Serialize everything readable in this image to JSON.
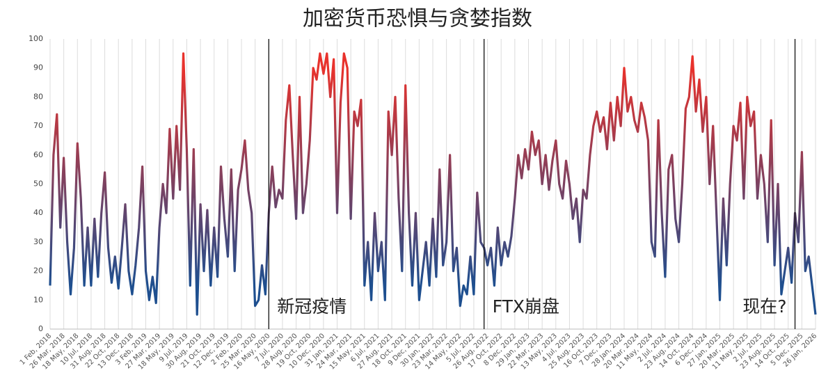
{
  "chart_data": {
    "type": "line",
    "title": "加密货币恐惧与贪婪指数",
    "categories": [
      "1 Feb, 2018",
      null,
      null,
      null,
      "26 Mar, 2018",
      null,
      null,
      null,
      "18 May, 2018",
      null,
      null,
      null,
      "10 Jul, 2018",
      null,
      null,
      null,
      "31 Aug, 2018",
      null,
      null,
      null,
      "22 Oct, 2018",
      null,
      null,
      null,
      "13 Dec, 2018",
      null,
      null,
      null,
      "3 Feb, 2019",
      null,
      null,
      null,
      "27 Mar, 2019",
      null,
      null,
      null,
      "18 May, 2019",
      null,
      null,
      null,
      "9 Jul, 2019",
      null,
      null,
      null,
      "30 Aug, 2019",
      null,
      null,
      null,
      "21 Oct, 2019",
      null,
      null,
      null,
      "12 Dec, 2019",
      null,
      null,
      null,
      "2 Feb, 2020",
      null,
      null,
      null,
      "25 Mar, 2020",
      null,
      null,
      null,
      "16 May, 2020",
      null,
      null,
      null,
      "7 Jul, 2020",
      null,
      null,
      null,
      "28 Aug, 2020",
      null,
      null,
      null,
      "19 Oct, 2020",
      null,
      null,
      null,
      "10 Dec, 2020",
      null,
      null,
      null,
      "31 Jan, 2021",
      null,
      null,
      null,
      "24 Mar, 2021",
      null,
      null,
      null,
      "15 May, 2021",
      null,
      null,
      null,
      "6 Jul, 2021",
      null,
      null,
      null,
      "27 Aug, 2021",
      null,
      null,
      null,
      "18 Oct, 2021",
      null,
      null,
      null,
      "9 Dec, 2021",
      null,
      null,
      null,
      "30 Jan, 2022",
      null,
      null,
      null,
      "23 Mar, 2022",
      null,
      null,
      null,
      "14 May, 2022",
      null,
      null,
      null,
      "5 Jul, 2022",
      null,
      null,
      null,
      "26 Aug, 2022",
      null,
      null,
      null,
      "17 Oct, 2022",
      null,
      null,
      null,
      "8 Dec, 2022",
      null,
      null,
      null,
      "29 Jan, 2023",
      null,
      null,
      null,
      "22 Mar, 2023",
      null,
      null,
      null,
      "13 May, 2023",
      null,
      null,
      null,
      "4 Jul, 2023",
      null,
      null,
      null,
      "25 Aug, 2023",
      null,
      null,
      null,
      "16 Oct, 2023",
      null,
      null,
      null,
      "7 Dec, 2023",
      null,
      null,
      null,
      "28 Jan, 2024",
      null,
      null,
      null,
      "20 Mar, 2024",
      null,
      null,
      null,
      "11 May, 2024",
      null,
      null,
      null,
      "2 Jul, 2024",
      null,
      null,
      null,
      "23 Aug, 2024",
      null,
      null,
      null,
      "14 Oct, 2024",
      null,
      null,
      null,
      "6 Dec, 2024",
      null,
      null,
      null,
      "27 Jan, 2025",
      null,
      null,
      null,
      "20 Mar, 2025",
      null,
      null,
      null,
      "11 May, 2025",
      null,
      null,
      null,
      "2 Jul, 2025",
      null,
      null,
      null,
      "23 Aug, 2025",
      null,
      null,
      null,
      "14 Oct, 2025",
      null,
      null,
      null,
      "5 Dec, 2025",
      null,
      null,
      null,
      "26 Jan, 2026"
    ],
    "values": [
      15,
      60,
      74,
      35,
      59,
      30,
      12,
      28,
      64,
      45,
      15,
      35,
      15,
      38,
      18,
      40,
      54,
      28,
      16,
      25,
      14,
      28,
      43,
      20,
      12,
      22,
      35,
      56,
      20,
      10,
      18,
      9,
      35,
      50,
      40,
      69,
      45,
      70,
      48,
      95,
      62,
      15,
      62,
      5,
      43,
      20,
      41,
      15,
      35,
      18,
      56,
      38,
      25,
      55,
      20,
      48,
      55,
      65,
      48,
      40,
      8,
      10,
      22,
      12,
      40,
      56,
      42,
      48,
      45,
      72,
      84,
      60,
      38,
      80,
      40,
      50,
      65,
      90,
      86,
      95,
      88,
      95,
      80,
      93,
      40,
      78,
      95,
      90,
      38,
      75,
      70,
      79,
      15,
      30,
      10,
      40,
      20,
      30,
      10,
      75,
      60,
      80,
      45,
      20,
      84,
      40,
      15,
      40,
      10,
      20,
      30,
      15,
      38,
      18,
      55,
      22,
      30,
      60,
      20,
      28,
      8,
      15,
      12,
      25,
      12,
      47,
      30,
      28,
      22,
      28,
      15,
      35,
      22,
      30,
      25,
      32,
      45,
      60,
      52,
      62,
      55,
      68,
      60,
      65,
      50,
      60,
      48,
      58,
      65,
      50,
      45,
      58,
      50,
      38,
      45,
      30,
      48,
      45,
      60,
      70,
      75,
      68,
      73,
      62,
      78,
      65,
      80,
      70,
      90,
      75,
      80,
      72,
      68,
      78,
      73,
      65,
      30,
      25,
      72,
      40,
      18,
      55,
      60,
      38,
      30,
      50,
      76,
      80,
      94,
      75,
      86,
      68,
      80,
      50,
      70,
      40,
      10,
      45,
      22,
      50,
      70,
      65,
      78,
      45,
      80,
      70,
      75,
      45,
      60,
      50,
      30,
      72,
      22,
      50,
      12,
      20,
      28,
      16,
      40,
      30,
      61,
      20,
      25,
      15,
      5
    ],
    "gradient": [
      "#e8322c",
      "#1e4f8f"
    ],
    "ylim": [
      0,
      100
    ],
    "yticks": [
      0,
      10,
      20,
      30,
      40,
      50,
      60,
      70,
      80,
      90,
      100
    ],
    "annotations": [
      "新冠疫情",
      "FTX崩盘",
      "现在?"
    ]
  }
}
